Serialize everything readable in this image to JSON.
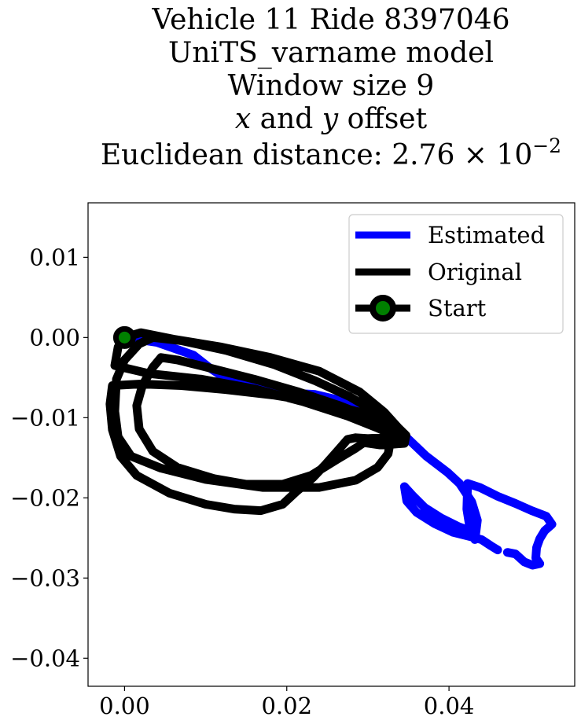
{
  "chart_data": {
    "type": "line",
    "title_lines": [
      "Vehicle 11 Ride 8397046",
      "UniTS_varname model",
      "Window size 9",
      "x and y offset",
      "Euclidean distance: 2.76 × 10^-2"
    ],
    "title": {
      "vehicle": "Vehicle 11 Ride 8397046",
      "model": "UniTS_varname model",
      "window": "Window size 9",
      "offset_x": "x",
      "offset_and": " and ",
      "offset_y": "y",
      "offset_suffix": " offset",
      "distance_prefix": "Euclidean distance: 2.76",
      "distance_times": " × 10",
      "distance_exp": "−2"
    },
    "xlim": [
      -0.0045,
      0.0555
    ],
    "ylim": [
      -0.0435,
      0.0168
    ],
    "xticks": [
      0.0,
      0.02,
      0.04
    ],
    "xtick_labels": [
      "0.00",
      "0.02",
      "0.04"
    ],
    "yticks": [
      0.01,
      0.0,
      -0.01,
      -0.02,
      -0.03,
      -0.04
    ],
    "ytick_labels": [
      "0.01",
      "0.00",
      "−0.01",
      "−0.02",
      "−0.03",
      "−0.04"
    ],
    "legend_position": "top-right",
    "grid": false,
    "series": [
      {
        "name": "Estimated",
        "color": "#0000ff",
        "segments": [
          [
            [
              0.0,
              0.0
            ],
            [
              0.004,
              -0.0006
            ],
            [
              0.0085,
              -0.0022
            ],
            [
              0.0105,
              -0.0038
            ],
            [
              0.012,
              -0.0048
            ],
            [
              0.0165,
              -0.0062
            ],
            [
              0.02,
              -0.0069
            ],
            [
              0.0235,
              -0.0071
            ],
            [
              0.0268,
              -0.0079
            ],
            [
              0.0298,
              -0.0092
            ],
            [
              0.032,
              -0.0107
            ],
            [
              0.0345,
              -0.0122
            ],
            [
              0.0372,
              -0.0148
            ],
            [
              0.0398,
              -0.0168
            ],
            [
              0.0413,
              -0.0182
            ],
            [
              0.0428,
              -0.0205
            ],
            [
              0.0435,
              -0.0228
            ],
            [
              0.0432,
              -0.0252
            ],
            [
              0.0425,
              -0.0233
            ],
            [
              0.0422,
              -0.0214
            ],
            [
              0.0423,
              -0.0182
            ],
            [
              0.0438,
              -0.0187
            ],
            [
              0.046,
              -0.0198
            ],
            [
              0.0482,
              -0.0207
            ],
            [
              0.0502,
              -0.0216
            ],
            [
              0.052,
              -0.0223
            ],
            [
              0.0527,
              -0.0233
            ],
            [
              0.0518,
              -0.0241
            ],
            [
              0.0512,
              -0.0251
            ],
            [
              0.0508,
              -0.0262
            ],
            [
              0.0507,
              -0.0275
            ],
            [
              0.0512,
              -0.0282
            ],
            [
              0.0503,
              -0.0284
            ],
            [
              0.0493,
              -0.028
            ],
            [
              0.0482,
              -0.027
            ],
            [
              0.0472,
              -0.0268
            ]
          ],
          [
            [
              0.046,
              -0.0265
            ],
            [
              0.0452,
              -0.026
            ],
            [
              0.044,
              -0.0252
            ],
            [
              0.0425,
              -0.0248
            ],
            [
              0.0405,
              -0.0243
            ],
            [
              0.0382,
              -0.0232
            ],
            [
              0.036,
              -0.0218
            ],
            [
              0.0348,
              -0.0204
            ],
            [
              0.0345,
              -0.0186
            ],
            [
              0.0356,
              -0.0198
            ],
            [
              0.037,
              -0.0212
            ],
            [
              0.039,
              -0.0225
            ],
            [
              0.0412,
              -0.0236
            ],
            [
              0.0428,
              -0.0242
            ]
          ]
        ]
      },
      {
        "name": "Original",
        "color": "#000000",
        "segments": [
          [
            [
              0.0,
              0.0
            ],
            [
              0.002,
              0.0006
            ],
            [
              0.006,
              -0.0002
            ],
            [
              0.012,
              -0.0012
            ],
            [
              0.018,
              -0.0025
            ],
            [
              0.024,
              -0.0042
            ],
            [
              0.029,
              -0.0068
            ],
            [
              0.032,
              -0.0093
            ],
            [
              0.0337,
              -0.0112
            ],
            [
              0.0347,
              -0.0122
            ],
            [
              0.0345,
              -0.0132
            ],
            [
              0.0332,
              -0.0133
            ],
            [
              0.0315,
              -0.0134
            ],
            [
              0.0295,
              -0.0131
            ],
            [
              0.0285,
              -0.0138
            ],
            [
              0.0262,
              -0.0152
            ],
            [
              0.023,
              -0.0172
            ],
            [
              0.0195,
              -0.0183
            ],
            [
              0.015,
              -0.0183
            ],
            [
              0.011,
              -0.0176
            ],
            [
              0.0065,
              -0.0162
            ],
            [
              0.0035,
              -0.0142
            ],
            [
              0.0018,
              -0.0114
            ],
            [
              0.0015,
              -0.0085
            ],
            [
              0.0022,
              -0.006
            ],
            [
              0.0035,
              -0.0037
            ],
            [
              0.0045,
              -0.0025
            ],
            [
              0.0065,
              -0.0028
            ],
            [
              0.0105,
              -0.0038
            ],
            [
              0.016,
              -0.0052
            ],
            [
              0.0215,
              -0.0068
            ],
            [
              0.0265,
              -0.0085
            ],
            [
              0.0298,
              -0.0098
            ],
            [
              0.0318,
              -0.0108
            ],
            [
              0.033,
              -0.0115
            ],
            [
              0.0328,
              -0.0128
            ],
            [
              0.0325,
              -0.0145
            ],
            [
              0.0312,
              -0.0162
            ],
            [
              0.0285,
              -0.0178
            ],
            [
              0.024,
              -0.0187
            ],
            [
              0.017,
              -0.0187
            ],
            [
              0.01,
              -0.0177
            ],
            [
              0.0045,
              -0.0163
            ],
            [
              0.0008,
              -0.0148
            ],
            [
              -0.0008,
              -0.0124
            ],
            [
              -0.0012,
              -0.0092
            ],
            [
              -0.001,
              -0.0052
            ],
            [
              0.0,
              -0.0028
            ],
            [
              0.0018,
              -0.0008
            ],
            [
              0.0035,
              0.0
            ],
            [
              0.007,
              -0.0004
            ],
            [
              0.0125,
              -0.0016
            ],
            [
              0.0185,
              -0.0034
            ],
            [
              0.0235,
              -0.0054
            ],
            [
              0.0278,
              -0.0074
            ],
            [
              0.0308,
              -0.0092
            ],
            [
              0.0325,
              -0.0106
            ],
            [
              0.0332,
              -0.0118
            ],
            [
              0.032,
              -0.0125
            ],
            [
              0.03,
              -0.0126
            ],
            [
              0.0285,
              -0.0125
            ],
            [
              0.0275,
              -0.0127
            ],
            [
              0.0262,
              -0.0142
            ],
            [
              0.0248,
              -0.0158
            ],
            [
              0.0232,
              -0.0175
            ],
            [
              0.0212,
              -0.0192
            ],
            [
              0.0195,
              -0.0208
            ],
            [
              0.0168,
              -0.0216
            ],
            [
              0.0135,
              -0.0214
            ],
            [
              0.01,
              -0.0208
            ],
            [
              0.0055,
              -0.0194
            ],
            [
              0.0015,
              -0.0172
            ],
            [
              -0.0005,
              -0.0148
            ],
            [
              -0.0015,
              -0.0115
            ],
            [
              -0.0018,
              -0.0083
            ],
            [
              -0.0015,
              -0.006
            ],
            [
              0.002,
              -0.0058
            ],
            [
              0.007,
              -0.006
            ],
            [
              0.0125,
              -0.0065
            ],
            [
              0.0185,
              -0.0072
            ],
            [
              0.0245,
              -0.0082
            ],
            [
              0.029,
              -0.0093
            ],
            [
              0.0318,
              -0.0104
            ],
            [
              0.0335,
              -0.0113
            ],
            [
              0.0345,
              -0.012
            ],
            [
              0.0335,
              -0.0123
            ],
            [
              0.031,
              -0.0112
            ],
            [
              0.0275,
              -0.0098
            ],
            [
              0.022,
              -0.008
            ],
            [
              0.016,
              -0.0064
            ],
            [
              0.0095,
              -0.0052
            ],
            [
              0.003,
              -0.0045
            ],
            [
              -0.0012,
              -0.0035
            ],
            [
              -0.0008,
              -0.0012
            ],
            [
              0.0,
              0.0
            ]
          ]
        ]
      },
      {
        "name": "Start",
        "color": "#000000",
        "marker_color": "#008000",
        "points": [
          [
            0.0,
            0.0
          ]
        ]
      }
    ]
  }
}
